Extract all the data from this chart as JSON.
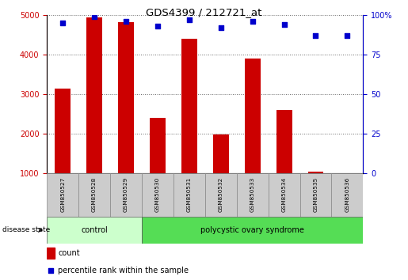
{
  "title": "GDS4399 / 212721_at",
  "samples": [
    "GSM850527",
    "GSM850528",
    "GSM850529",
    "GSM850530",
    "GSM850531",
    "GSM850532",
    "GSM850533",
    "GSM850534",
    "GSM850535",
    "GSM850536"
  ],
  "counts": [
    3150,
    4950,
    4820,
    2400,
    4400,
    1980,
    3900,
    2600,
    1050,
    980
  ],
  "percentiles": [
    95,
    99,
    96,
    93,
    97,
    92,
    96,
    94,
    87,
    87
  ],
  "ylim_left": [
    1000,
    5000
  ],
  "ylim_right": [
    0,
    100
  ],
  "yticks_left": [
    1000,
    2000,
    3000,
    4000,
    5000
  ],
  "yticks_right": [
    0,
    25,
    50,
    75,
    100
  ],
  "bar_color": "#cc0000",
  "dot_color": "#0000cc",
  "groups": [
    {
      "label": "control",
      "indices": [
        0,
        1,
        2
      ],
      "color": "#ccffcc"
    },
    {
      "label": "polycystic ovary syndrome",
      "indices": [
        3,
        4,
        5,
        6,
        7,
        8,
        9
      ],
      "color": "#55dd55"
    }
  ],
  "disease_state_label": "disease state",
  "legend_count_label": "count",
  "legend_percentile_label": "percentile rank within the sample",
  "left_axis_color": "#cc0000",
  "right_axis_color": "#0000cc",
  "bar_width": 0.5,
  "label_box_color": "#cccccc",
  "label_box_border": "#888888"
}
